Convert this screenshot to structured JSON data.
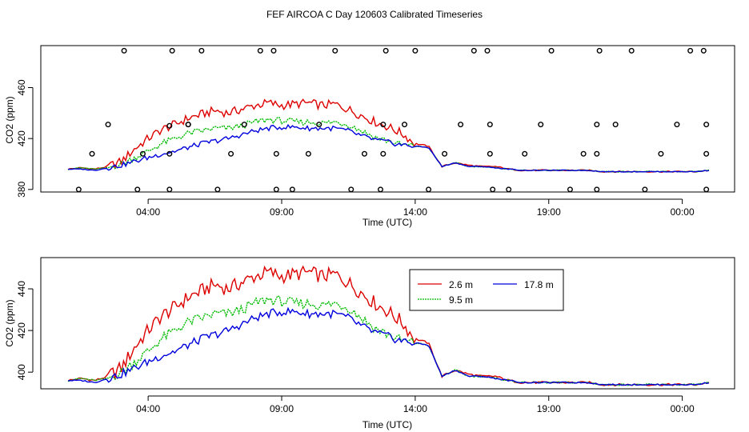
{
  "title": "FEF AIRCOA C  Day 120603  Calibrated Timeseries",
  "colors": {
    "s1": "#dd0000",
    "s2": "#00bb00",
    "s3": "#0000dd",
    "axis": "#000000"
  },
  "chart_data": [
    {
      "type": "scatter+line",
      "xlabel": "Time (UTC)",
      "ylabel": "CO2 (ppm)",
      "xlim": [
        0,
        24
      ],
      "ylim": [
        378,
        493
      ],
      "x_ticks": [
        3,
        8,
        13,
        18,
        23
      ],
      "x_tick_labels": [
        "04:00",
        "09:00",
        "14:00",
        "19:00",
        "00:00"
      ],
      "y_ticks": [
        380,
        420,
        460
      ],
      "y_tick_labels": [
        "380",
        "420",
        "460"
      ],
      "legend": "none",
      "series": [
        {
          "name": "2.6 m",
          "color": "#dd0000"
        },
        {
          "name": "9.5 m",
          "color": "#00bb00"
        },
        {
          "name": "17.8 m",
          "color": "#0000dd"
        }
      ],
      "scatter_points": [
        [
          0.4,
          380
        ],
        [
          0.9,
          408
        ],
        [
          1.5,
          431
        ],
        [
          2.1,
          489
        ],
        [
          2.6,
          380
        ],
        [
          2.8,
          408
        ],
        [
          3.8,
          380
        ],
        [
          3.8,
          408
        ],
        [
          3.8,
          430
        ],
        [
          3.9,
          489
        ],
        [
          4.5,
          431
        ],
        [
          4.5,
          431
        ],
        [
          5.0,
          489
        ],
        [
          5.6,
          380
        ],
        [
          6.1,
          408
        ],
        [
          6.6,
          431
        ],
        [
          7.2,
          489
        ],
        [
          7.7,
          489
        ],
        [
          7.8,
          380
        ],
        [
          7.8,
          408
        ],
        [
          8.4,
          380
        ],
        [
          9.0,
          408
        ],
        [
          9.4,
          431
        ],
        [
          10.0,
          489
        ],
        [
          10.6,
          380
        ],
        [
          11.1,
          408
        ],
        [
          11.7,
          380
        ],
        [
          11.8,
          431
        ],
        [
          11.8,
          408
        ],
        [
          11.9,
          489
        ],
        [
          12.6,
          431
        ],
        [
          13.0,
          489
        ],
        [
          13.5,
          380
        ],
        [
          14.1,
          408
        ],
        [
          14.7,
          431
        ],
        [
          15.2,
          489
        ],
        [
          15.7,
          489
        ],
        [
          15.8,
          431
        ],
        [
          15.8,
          408
        ],
        [
          15.9,
          380
        ],
        [
          16.5,
          380
        ],
        [
          17.1,
          408
        ],
        [
          17.7,
          431
        ],
        [
          18.1,
          489
        ],
        [
          18.8,
          380
        ],
        [
          19.3,
          408
        ],
        [
          19.8,
          380
        ],
        [
          19.8,
          408
        ],
        [
          19.8,
          431
        ],
        [
          19.9,
          489
        ],
        [
          20.5,
          431
        ],
        [
          21.1,
          489
        ],
        [
          21.6,
          380
        ],
        [
          22.2,
          408
        ],
        [
          22.8,
          431
        ],
        [
          23.3,
          489
        ],
        [
          23.8,
          489
        ],
        [
          23.9,
          431
        ],
        [
          23.9,
          408
        ],
        [
          23.9,
          380
        ]
      ]
    },
    {
      "type": "line",
      "xlabel": "Time (UTC)",
      "ylabel": "CO2 (ppm)",
      "xlim": [
        0,
        24
      ],
      "ylim": [
        392,
        455
      ],
      "x_ticks": [
        3,
        8,
        13,
        18,
        23
      ],
      "x_tick_labels": [
        "04:00",
        "09:00",
        "14:00",
        "19:00",
        "00:00"
      ],
      "y_ticks": [
        400,
        420,
        440
      ],
      "y_tick_labels": [
        "400",
        "420",
        "440"
      ],
      "legend": "top-right",
      "series": [
        {
          "name": "2.6 m",
          "color": "#dd0000"
        },
        {
          "name": "17.8 m",
          "color": "#0000dd"
        },
        {
          "name": "9.5 m",
          "color": "#00bb00"
        }
      ]
    }
  ],
  "profile": {
    "x": [
      0,
      0.5,
      1.0,
      1.5,
      2.0,
      2.5,
      3.0,
      3.5,
      4.0,
      4.5,
      5.0,
      5.5,
      6.0,
      6.5,
      7.0,
      7.5,
      8.0,
      8.5,
      9.0,
      9.5,
      10.0,
      10.5,
      11.0,
      11.5,
      12.0,
      12.5,
      13.0,
      13.5,
      14.0,
      14.5,
      15.0,
      15.5,
      16.0,
      16.5,
      17.0,
      17.5,
      18.0,
      18.5,
      19.0,
      19.5,
      20.0,
      20.5,
      21.0,
      21.5,
      22.0,
      22.5,
      23.0,
      23.5,
      24.0
    ],
    "s1": [
      396,
      397,
      396,
      398,
      402,
      412,
      420,
      427,
      431,
      436,
      439,
      442,
      440,
      443,
      446,
      448,
      446,
      447,
      448,
      446,
      447,
      443,
      438,
      433,
      429,
      424,
      416,
      414,
      398,
      401,
      399,
      398,
      398,
      396,
      395,
      395,
      395,
      395,
      395,
      395,
      394,
      394,
      394,
      394,
      394,
      394,
      394,
      394,
      395
    ],
    "s2": [
      396,
      397,
      396,
      397,
      400,
      405,
      410,
      416,
      420,
      424,
      426,
      428,
      428,
      430,
      433,
      435,
      434,
      433,
      433,
      432,
      433,
      431,
      426,
      421,
      418,
      415,
      414,
      413,
      398,
      401,
      398,
      398,
      397,
      396,
      395,
      395,
      395,
      395,
      395,
      395,
      394,
      394,
      394,
      394,
      394,
      394,
      394,
      394,
      395
    ],
    "s3": [
      396,
      396,
      395,
      397,
      399,
      402,
      405,
      408,
      410,
      413,
      416,
      418,
      420,
      423,
      426,
      428,
      429,
      429,
      428,
      428,
      428,
      426,
      422,
      419,
      417,
      415,
      414,
      413,
      398,
      401,
      398,
      398,
      397,
      396,
      395,
      395,
      395,
      395,
      395,
      395,
      394,
      394,
      394,
      394,
      394,
      394,
      394,
      394,
      395
    ]
  }
}
